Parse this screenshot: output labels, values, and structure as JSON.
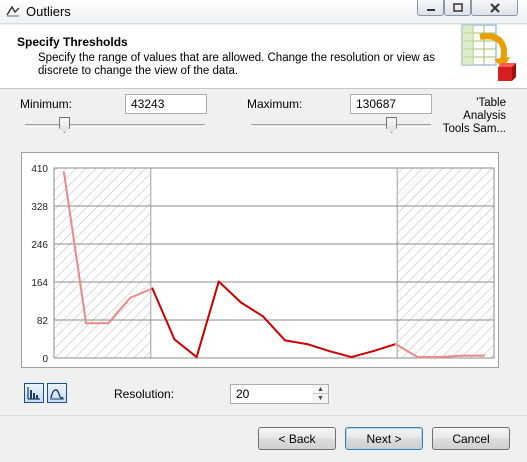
{
  "window": {
    "title": "Outliers"
  },
  "header": {
    "title": "Specify Thresholds",
    "description": "Specify the range of values that are allowed.  Change the resolution or view as discrete to change the view of the data."
  },
  "controls": {
    "minimum_label": "Minimum:",
    "minimum_value": "43243",
    "maximum_label": "Maximum:",
    "maximum_value": "130687",
    "table_name_line1": "'Table",
    "table_name_line2": "Analysis",
    "table_name_line3": "Tools Sam...",
    "minimum_slider_fraction": 0.22,
    "maximum_slider_fraction": 0.78
  },
  "chart_data": {
    "type": "line",
    "x": [
      1,
      2,
      3,
      4,
      5,
      6,
      7,
      8,
      9,
      10,
      11,
      12,
      13,
      14,
      15,
      16,
      17,
      18,
      19,
      20
    ],
    "values": [
      400,
      75,
      75,
      130,
      150,
      40,
      2,
      165,
      120,
      90,
      38,
      30,
      15,
      2,
      15,
      30,
      2,
      2,
      5,
      5
    ],
    "ylim": [
      0,
      410
    ],
    "y_ticks": [
      "410",
      "328",
      "246",
      "164",
      "82",
      "0"
    ],
    "excluded_left_fraction": 0.22,
    "excluded_right_fraction": 0.78,
    "line_color": "#cc0000",
    "excluded_line_color": "#ee8888",
    "grid": true
  },
  "resolution": {
    "label": "Resolution:",
    "value": "20"
  },
  "view_buttons": {
    "histogram_icon": "histogram-view-icon",
    "line_icon": "line-view-icon"
  },
  "footer": {
    "back_label": "< Back",
    "next_label": "Next >",
    "cancel_label": "Cancel"
  }
}
